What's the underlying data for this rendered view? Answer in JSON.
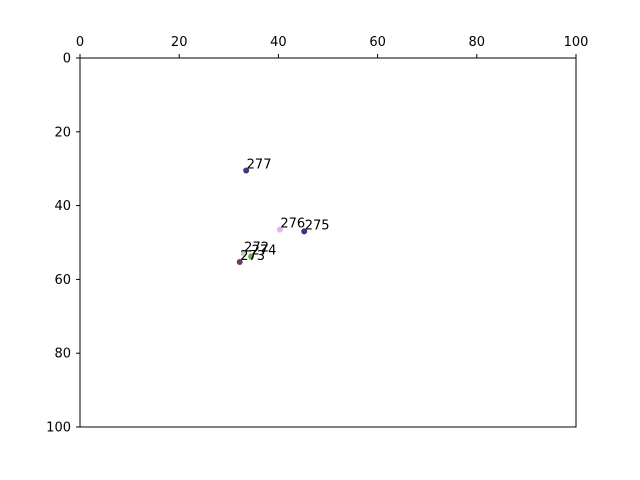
{
  "chart_data": {
    "type": "scatter",
    "title": "",
    "xlabel": "",
    "ylabel": "",
    "xlim": [
      0,
      100
    ],
    "ylim": [
      100,
      0
    ],
    "x_axis_position": "top",
    "y_axis_inverted": true,
    "grid": false,
    "legend": "none",
    "x_ticks": [
      0,
      20,
      40,
      60,
      80,
      100
    ],
    "y_ticks": [
      0,
      20,
      40,
      60,
      80,
      100
    ],
    "points": [
      {
        "label": "277",
        "x": 33.5,
        "y": 30.5,
        "color": "#3a3a8c"
      },
      {
        "label": "276",
        "x": 40.3,
        "y": 46.5,
        "color": "#e3b3ee"
      },
      {
        "label": "275",
        "x": 45.2,
        "y": 47.0,
        "color": "#4b2a8c"
      },
      {
        "label": "272",
        "x": 33.0,
        "y": 53.0,
        "color": "#c8c8c8"
      },
      {
        "label": "274",
        "x": 34.5,
        "y": 53.8,
        "color": "#6aa84f"
      },
      {
        "label": "273",
        "x": 32.2,
        "y": 55.3,
        "color": "#6b3d5a"
      }
    ]
  }
}
